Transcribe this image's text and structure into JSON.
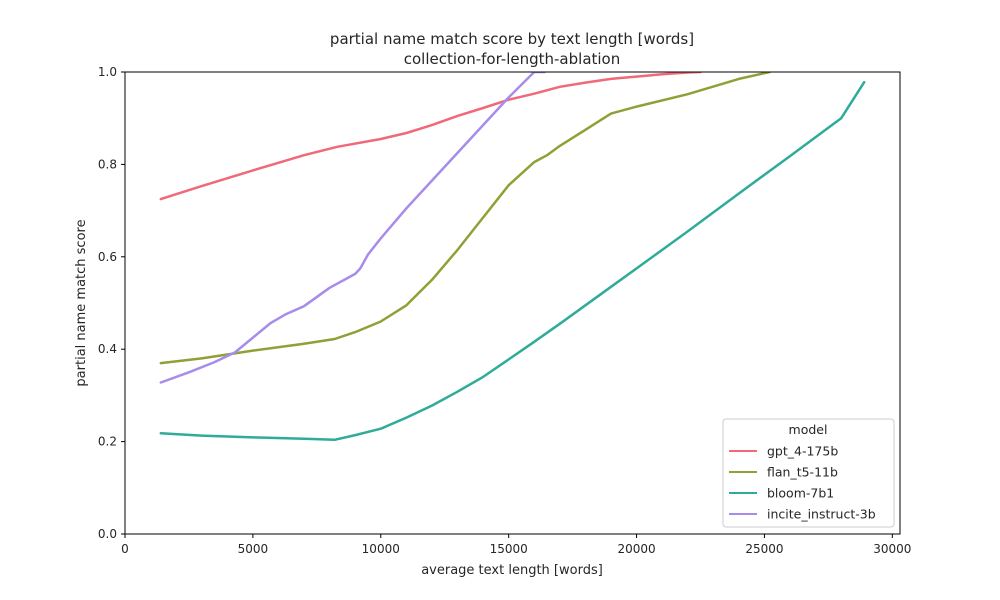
{
  "chart_data": {
    "type": "line",
    "title": "partial name match score by text length [words]",
    "subtitle": "collection-for-length-ablation",
    "xlabel": "average text length [words]",
    "ylabel": "partial name match score",
    "xlim": [
      0,
      30300
    ],
    "ylim": [
      0.0,
      1.0
    ],
    "x_ticks": [
      0,
      5000,
      10000,
      15000,
      20000,
      25000,
      30000
    ],
    "x_tick_labels": [
      "0",
      "5000",
      "10000",
      "15000",
      "20000",
      "25000",
      "30000"
    ],
    "y_ticks": [
      0.0,
      0.2,
      0.4,
      0.6,
      0.8,
      1.0
    ],
    "y_tick_labels": [
      "0.0",
      "0.2",
      "0.4",
      "0.6",
      "0.8",
      "1.0"
    ],
    "grid": false,
    "legend": {
      "title": "model",
      "placement": "lower-right"
    },
    "series": [
      {
        "name": "gpt_4-175b",
        "color": "#f0697a",
        "x": [
          1400,
          3000,
          5000,
          7000,
          8300,
          10000,
          11000,
          12000,
          13000,
          14000,
          15000,
          16000,
          17000,
          18000,
          19000,
          20000,
          21000,
          22000,
          22500
        ],
        "y": [
          0.725,
          0.753,
          0.787,
          0.82,
          0.838,
          0.855,
          0.868,
          0.885,
          0.905,
          0.922,
          0.94,
          0.953,
          0.968,
          0.977,
          0.985,
          0.99,
          0.995,
          0.999,
          1.0
        ]
      },
      {
        "name": "flan_t5-11b",
        "color": "#8fa136",
        "x": [
          1400,
          3000,
          5000,
          7000,
          8200,
          9000,
          10000,
          11000,
          12000,
          13000,
          14000,
          15000,
          16000,
          16500,
          17000,
          18000,
          19000,
          20000,
          22000,
          24000,
          25200
        ],
        "y": [
          0.37,
          0.38,
          0.397,
          0.412,
          0.422,
          0.437,
          0.46,
          0.495,
          0.55,
          0.615,
          0.685,
          0.755,
          0.805,
          0.82,
          0.84,
          0.875,
          0.91,
          0.925,
          0.952,
          0.985,
          1.0
        ]
      },
      {
        "name": "bloom-7b1",
        "color": "#2fab9a",
        "x": [
          1400,
          3000,
          5000,
          7000,
          8200,
          9000,
          10000,
          11000,
          12000,
          13000,
          14000,
          15000,
          16000,
          17000,
          18000,
          19000,
          20000,
          22000,
          24000,
          26000,
          28000,
          28900
        ],
        "y": [
          0.218,
          0.213,
          0.209,
          0.206,
          0.204,
          0.214,
          0.228,
          0.252,
          0.278,
          0.308,
          0.34,
          0.378,
          0.416,
          0.455,
          0.495,
          0.535,
          0.575,
          0.655,
          0.737,
          0.818,
          0.9,
          0.978
        ]
      },
      {
        "name": "incite_instruct-3b",
        "color": "#a78ceb",
        "x": [
          1400,
          2500,
          3500,
          4300,
          5000,
          5700,
          6300,
          7000,
          8000,
          9000,
          9200,
          9500,
          10000,
          11000,
          12000,
          13000,
          14000,
          15000,
          16000,
          16400
        ],
        "y": [
          0.328,
          0.35,
          0.372,
          0.393,
          0.425,
          0.457,
          0.476,
          0.493,
          0.533,
          0.563,
          0.575,
          0.605,
          0.64,
          0.705,
          0.765,
          0.825,
          0.885,
          0.945,
          1.0,
          1.0
        ]
      }
    ]
  }
}
